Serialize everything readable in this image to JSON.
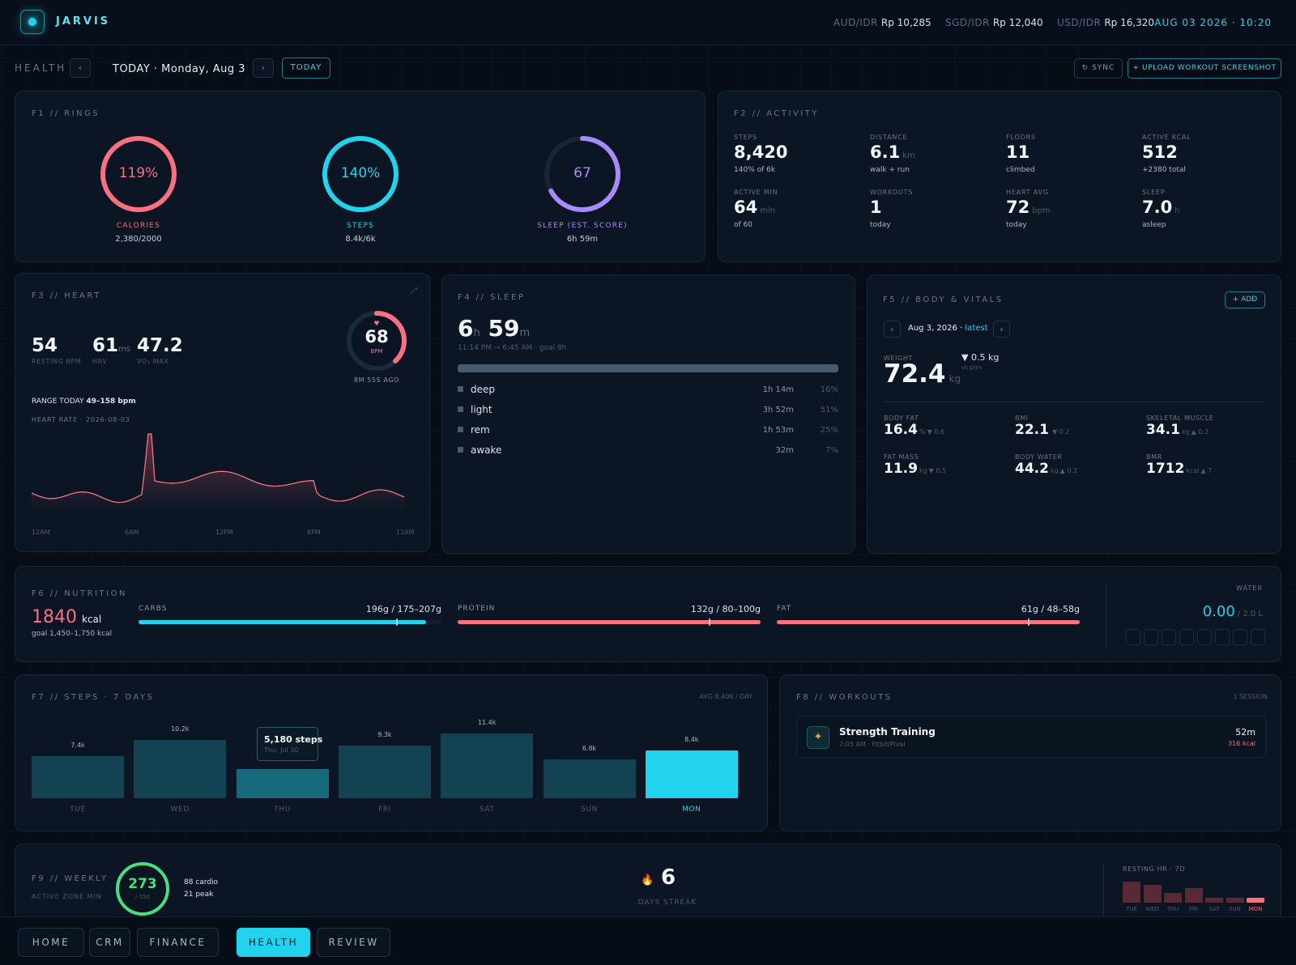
{
  "app": {
    "name": "JARVIS"
  },
  "fx": [
    {
      "pair": "AUD/IDR",
      "value": "Rp 10,285"
    },
    {
      "pair": "SGD/IDR",
      "value": "Rp 12,040"
    },
    {
      "pair": "USD/IDR",
      "value": "Rp 16,320"
    }
  ],
  "clock": "AUG 03 2026 · 10:20",
  "header": {
    "section": "HEALTH",
    "prev": "‹",
    "next": "›",
    "date": "TODAY · Monday, Aug 3",
    "today_btn": "TODAY",
    "sync_btn": "↻ SYNC",
    "upload_btn": "+ UPLOAD WORKOUT SCREENSHOT"
  },
  "rings": {
    "title": "F1 // RINGS",
    "items": [
      {
        "value": "119%",
        "label": "CALORIES",
        "sub": "2,380/2000",
        "pct": 1.0,
        "color": "#f87180"
      },
      {
        "value": "140%",
        "label": "STEPS",
        "sub": "8.4k/6k",
        "pct": 1.0,
        "color": "#22d3ee"
      },
      {
        "value": "67",
        "label": "SLEEP (EST. SCORE)",
        "sub": "6h 59m",
        "pct": 0.67,
        "color": "#a78bfa"
      }
    ]
  },
  "activity": {
    "title": "F2 // ACTIVITY",
    "stats": [
      {
        "label": "STEPS",
        "value": "8,420",
        "unit": "",
        "sub": "140% of 6k"
      },
      {
        "label": "DISTANCE",
        "value": "6.1",
        "unit": "km",
        "sub": "walk + run"
      },
      {
        "label": "FLOORS",
        "value": "11",
        "unit": "",
        "sub": "climbed"
      },
      {
        "label": "ACTIVE KCAL",
        "value": "512",
        "unit": "",
        "sub": "+2380 total"
      },
      {
        "label": "ACTIVE MIN",
        "value": "64",
        "unit": "min",
        "sub": "of 60"
      },
      {
        "label": "WORKOUTS",
        "value": "1",
        "unit": "",
        "sub": "today"
      },
      {
        "label": "HEART AVG",
        "value": "72",
        "unit": "bpm",
        "sub": "today"
      },
      {
        "label": "SLEEP",
        "value": "7.0",
        "unit": "h",
        "sub": "asleep"
      }
    ]
  },
  "heart": {
    "title": "F3 // HEART",
    "expand": "⤢",
    "metrics": [
      {
        "value": "54",
        "unit": "",
        "label": "RESTING BPM"
      },
      {
        "value": "61",
        "unit": "ms",
        "label": "HRV"
      },
      {
        "value": "47.2",
        "unit": "",
        "label": "VO₂ MAX"
      }
    ],
    "live": {
      "value": "68",
      "unit": "BPM",
      "ago": "8M 55S AGO",
      "heart": "♥"
    },
    "range_label": "RANGE TODAY",
    "range_value": "49–158 bpm",
    "chart_label": "HEART RATE · 2026-08-03",
    "axis": [
      "12AM",
      "6AM",
      "12PM",
      "6PM",
      "12AM"
    ]
  },
  "sleep": {
    "title": "F4 // SLEEP",
    "hours": "6",
    "h": "h",
    "minutes": "59",
    "m": "m",
    "window": "11:14 PM → 6:45 AM · goal 8h",
    "stages": [
      {
        "name": "deep",
        "dur": "1h 14m",
        "pct": "16%"
      },
      {
        "name": "light",
        "dur": "3h 52m",
        "pct": "51%"
      },
      {
        "name": "rem",
        "dur": "1h 53m",
        "pct": "25%"
      },
      {
        "name": "awake",
        "dur": "32m",
        "pct": "7%"
      }
    ]
  },
  "body": {
    "title": "F5 // BODY & VITALS",
    "add_btn": "+ ADD",
    "prev": "‹",
    "next": "›",
    "date": "Aug 3, 2026",
    "latest": "latest",
    "weight_label": "WEIGHT",
    "weight": "72.4",
    "weight_unit": "kg",
    "delta": "▼ 0.5 kg",
    "delta_sub": "vs prev",
    "stats": [
      {
        "label": "BODY FAT",
        "value": "16.4",
        "unit": "%",
        "delta": "▼ 0.6"
      },
      {
        "label": "BMI",
        "value": "22.1",
        "unit": "",
        "delta": "▼ 0.2"
      },
      {
        "label": "SKELETAL MUSCLE",
        "value": "34.1",
        "unit": "kg",
        "delta": "▲ 0.2"
      },
      {
        "label": "FAT MASS",
        "value": "11.9",
        "unit": "kg",
        "delta": "▼ 0.5"
      },
      {
        "label": "BODY WATER",
        "value": "44.2",
        "unit": "kg",
        "delta": "▲ 0.2"
      },
      {
        "label": "BMR",
        "value": "1712",
        "unit": "kcal",
        "delta": "▲ 7"
      }
    ]
  },
  "nutrition": {
    "title": "F6 // NUTRITION",
    "kcal": "1840",
    "kcal_unit": "kcal",
    "goal": "goal 1,450–1,750 kcal",
    "macros": [
      {
        "name": "CARBS",
        "value": "196g / 175–207g",
        "fill": 0.95,
        "color": "#22d3ee"
      },
      {
        "name": "PROTEIN",
        "value": "132g / 80–100g",
        "fill": 1.0,
        "color": "#f87180"
      },
      {
        "name": "FAT",
        "value": "61g / 48–58g",
        "fill": 1.0,
        "color": "#f87180"
      }
    ],
    "water_label": "WATER",
    "water": "0.00",
    "water_goal": "/ 2.0 L"
  },
  "steps7": {
    "title": "F7 // STEPS · 7 DAYS",
    "avg": "AVG 8,406 / DAY",
    "tooltip": {
      "value": "5,180 steps",
      "date": "Thu, Jul 30"
    },
    "chart_data": {
      "type": "bar",
      "categories": [
        "TUE",
        "WED",
        "THU",
        "FRI",
        "SAT",
        "SUN",
        "MON"
      ],
      "values": [
        7400,
        10200,
        5180,
        9300,
        11400,
        6800,
        8400
      ],
      "labels": [
        "7.4k",
        "10.2k",
        "",
        "9.3k",
        "11.4k",
        "6.8k",
        "8.4k"
      ],
      "highlight": "MON"
    }
  },
  "workouts": {
    "title": "F8 // WORKOUTS",
    "count": "1 SESSION",
    "items": [
      {
        "name": "Strength Training",
        "meta": "7:05 AM · Fitbit/Pixel",
        "dur": "52m",
        "kcal": "316 kcal"
      }
    ]
  },
  "weekly": {
    "title": "F9 // WEEKLY",
    "subtitle": "ACTIVE ZONE MIN",
    "value": "273",
    "goal": "/ 150",
    "cardio": "88 cardio",
    "peak": "21 peak",
    "streak": "6",
    "streak_label": "DAYS STREAK",
    "rhr_title": "RESTING HR · 7D",
    "rhr_days": [
      "TUE",
      "WED",
      "THU",
      "FRI",
      "SAT",
      "SUN",
      "MON"
    ]
  },
  "tabs": [
    "HOME",
    "CRM",
    "FINANCE",
    "HEALTH",
    "REVIEW"
  ],
  "active_tab": "HEALTH"
}
